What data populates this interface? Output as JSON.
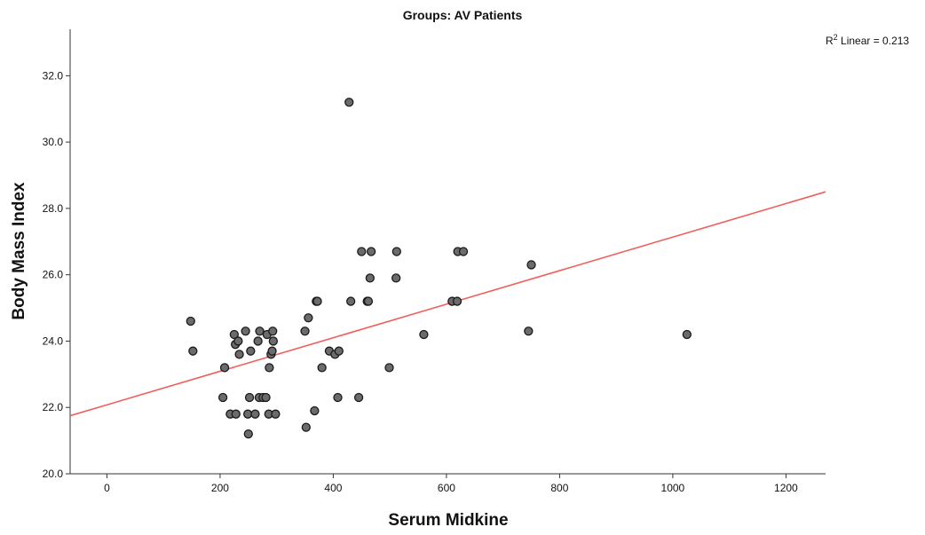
{
  "chart_data": {
    "type": "scatter",
    "title": "Groups: AV Patients",
    "xlabel": "Serum Midkine",
    "ylabel": "Body Mass Index",
    "xlim": [
      -65,
      1270
    ],
    "ylim": [
      20.0,
      33.4
    ],
    "xticks": [
      0,
      200,
      400,
      600,
      800,
      1000,
      1200
    ],
    "yticks": [
      20.0,
      22.0,
      24.0,
      26.0,
      28.0,
      30.0,
      32.0
    ],
    "xtick_labels": [
      "0",
      "200",
      "400",
      "600",
      "800",
      "1000",
      "1200"
    ],
    "ytick_labels": [
      "20.0",
      "22.0",
      "24.0",
      "26.0",
      "28.0",
      "30.0",
      "32.0"
    ],
    "grid": false,
    "fit_line": {
      "label_prefix": "R",
      "label_sup": "2",
      "label_suffix": " Linear = 0.213",
      "color": "#f0605a",
      "points": [
        [
          -65,
          21.75
        ],
        [
          1270,
          28.5
        ]
      ]
    },
    "marker_color": "#6b6b6b",
    "marker_edge": "#1a1a1a",
    "series": [
      {
        "points": [
          [
            148,
            24.6
          ],
          [
            152,
            23.7
          ],
          [
            205,
            22.3
          ],
          [
            208,
            23.2
          ],
          [
            218,
            21.8
          ],
          [
            225,
            24.2
          ],
          [
            227,
            23.9
          ],
          [
            228,
            21.8
          ],
          [
            232,
            24.0
          ],
          [
            234,
            23.6
          ],
          [
            245,
            24.3
          ],
          [
            249,
            21.8
          ],
          [
            250,
            21.2
          ],
          [
            252,
            22.3
          ],
          [
            254,
            23.7
          ],
          [
            262,
            21.8
          ],
          [
            267,
            24.0
          ],
          [
            269,
            22.3
          ],
          [
            270,
            24.3
          ],
          [
            276,
            22.3
          ],
          [
            281,
            22.3
          ],
          [
            283,
            24.2
          ],
          [
            286,
            21.8
          ],
          [
            287,
            23.2
          ],
          [
            290,
            23.6
          ],
          [
            292,
            23.7
          ],
          [
            293,
            24.3
          ],
          [
            294,
            24.0
          ],
          [
            298,
            21.8
          ],
          [
            350,
            24.3
          ],
          [
            352,
            21.4
          ],
          [
            356,
            24.7
          ],
          [
            367,
            21.9
          ],
          [
            370,
            25.2
          ],
          [
            372,
            25.2
          ],
          [
            380,
            23.2
          ],
          [
            393,
            23.7
          ],
          [
            403,
            23.6
          ],
          [
            408,
            22.3
          ],
          [
            410,
            23.7
          ],
          [
            428,
            31.2
          ],
          [
            431,
            25.2
          ],
          [
            445,
            22.3
          ],
          [
            450,
            26.7
          ],
          [
            460,
            25.2
          ],
          [
            462,
            25.2
          ],
          [
            465,
            25.9
          ],
          [
            467,
            26.7
          ],
          [
            499,
            23.2
          ],
          [
            511,
            25.9
          ],
          [
            512,
            26.7
          ],
          [
            560,
            24.2
          ],
          [
            610,
            25.2
          ],
          [
            619,
            25.2
          ],
          [
            620,
            26.7
          ],
          [
            630,
            26.7
          ],
          [
            745,
            24.3
          ],
          [
            750,
            26.3
          ],
          [
            1025,
            24.2
          ]
        ]
      }
    ]
  }
}
